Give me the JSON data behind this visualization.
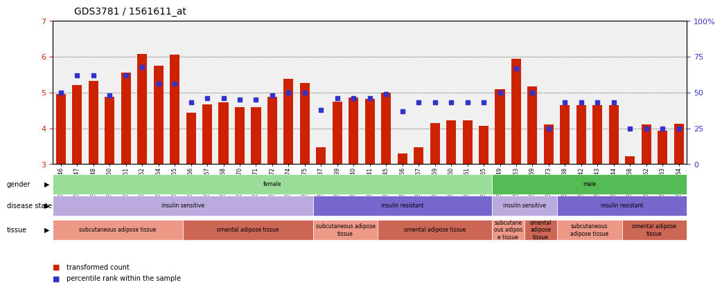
{
  "title": "GDS3781 / 1561611_at",
  "samples": [
    "GSM523846",
    "GSM523847",
    "GSM523848",
    "GSM523850",
    "GSM523851",
    "GSM523852",
    "GSM523854",
    "GSM523855",
    "GSM523866",
    "GSM523867",
    "GSM523868",
    "GSM523870",
    "GSM523871",
    "GSM523872",
    "GSM523874",
    "GSM523875",
    "GSM528837",
    "GSM523839",
    "GSM523840",
    "GSM523841",
    "GSM523845",
    "GSM523856",
    "GSM523857",
    "GSM523859",
    "GSM523860",
    "GSM523861",
    "GSM523865",
    "GSM523849",
    "GSM523853",
    "GSM523869",
    "GSM523873",
    "GSM523838",
    "GSM523842",
    "GSM523843",
    "GSM523844",
    "GSM523858",
    "GSM523862",
    "GSM523863",
    "GSM523864"
  ],
  "transformed_count": [
    4.95,
    5.22,
    5.32,
    4.88,
    5.55,
    6.08,
    5.75,
    6.07,
    4.43,
    4.67,
    4.72,
    4.6,
    4.6,
    4.88,
    5.38,
    5.27,
    3.47,
    4.75,
    4.87,
    4.82,
    5.0,
    3.3,
    3.47,
    4.15,
    4.22,
    4.23,
    4.07,
    5.1,
    5.95,
    5.18,
    4.1,
    4.65,
    4.65,
    4.65,
    4.65,
    3.22,
    4.1,
    3.93,
    4.13
  ],
  "percentile_rank": [
    50,
    62,
    62,
    48,
    62,
    68,
    56,
    56,
    43,
    46,
    46,
    45,
    45,
    48,
    50,
    50,
    38,
    46,
    46,
    46,
    49,
    37,
    43,
    43,
    43,
    43,
    43,
    50,
    67,
    50,
    25,
    43,
    43,
    43,
    43,
    25,
    25,
    25,
    25
  ],
  "bar_color": "#cc2200",
  "blue_color": "#3333cc",
  "ylim_left": [
    3,
    7
  ],
  "ylim_right": [
    0,
    100
  ],
  "yticks_left": [
    3,
    4,
    5,
    6,
    7
  ],
  "yticks_right": [
    0,
    25,
    50,
    75,
    100
  ],
  "gender_row": {
    "female": {
      "start": 0,
      "end": 27,
      "color": "#99dd99",
      "label": "female"
    },
    "male": {
      "start": 27,
      "end": 39,
      "color": "#55bb55",
      "label": "male"
    }
  },
  "disease_state_row": [
    {
      "label": "insulin sensitive",
      "start": 0,
      "end": 16,
      "color": "#bbaadd"
    },
    {
      "label": "insulin resistant",
      "start": 16,
      "end": 27,
      "color": "#7766cc"
    },
    {
      "label": "insulin sensitive",
      "start": 27,
      "end": 31,
      "color": "#bbaadd"
    },
    {
      "label": "insulin resistant",
      "start": 31,
      "end": 39,
      "color": "#7766cc"
    }
  ],
  "tissue_row": [
    {
      "label": "subcutaneous adipose tissue",
      "start": 0,
      "end": 8,
      "color": "#ee9988"
    },
    {
      "label": "omental adipose tissue",
      "start": 8,
      "end": 16,
      "color": "#cc6655"
    },
    {
      "label": "subcutaneous adipose\ntissue",
      "start": 16,
      "end": 20,
      "color": "#ee9988"
    },
    {
      "label": "omental adipose tissue",
      "start": 20,
      "end": 27,
      "color": "#cc6655"
    },
    {
      "label": "subcutane\nous adipos\ne tissue",
      "start": 27,
      "end": 29,
      "color": "#ee9988"
    },
    {
      "label": "omental\nadipose\ntissue",
      "start": 29,
      "end": 31,
      "color": "#cc6655"
    },
    {
      "label": "subcutaneous\nadipose tissue",
      "start": 31,
      "end": 35,
      "color": "#ee9988"
    },
    {
      "label": "omental adipose\ntissue",
      "start": 35,
      "end": 39,
      "color": "#cc6655"
    }
  ]
}
